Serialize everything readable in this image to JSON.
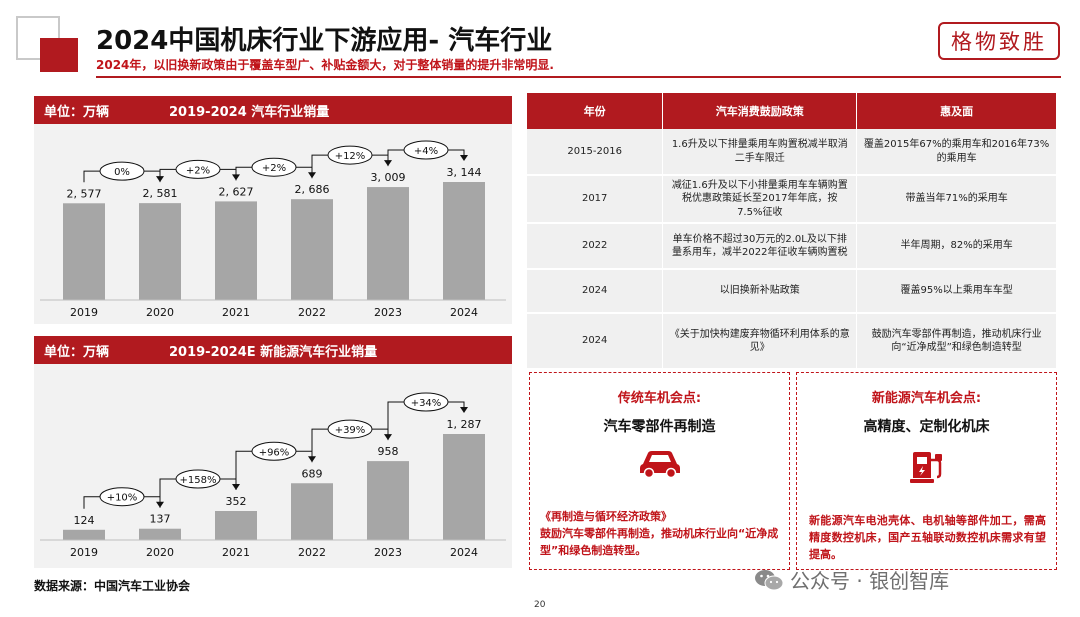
{
  "header": {
    "title": "2024中国机床行业下游应用- 汽车行业",
    "subtitle": "2024年，以旧换新政策由于覆盖车型广、补贴金额大，对于整体销量的提升非常明显.",
    "seal_text": "格物致胜"
  },
  "colors": {
    "brand_red": "#b11a1f",
    "bar_gray": "#a6a6a6",
    "panel_bg": "#f2f2f2"
  },
  "chart1": {
    "unit": "单位：万辆",
    "title": "2019-2024   汽车行业销量"
  },
  "chart2": {
    "unit": "单位：万辆",
    "title": "2019-2024E  新能源汽车行业销量"
  },
  "chart_data": [
    {
      "type": "bar",
      "title": "2019-2024   汽车行业销量",
      "categories": [
        "2019",
        "2020",
        "2021",
        "2022",
        "2023",
        "2024"
      ],
      "values": [
        2577,
        2581,
        2627,
        2686,
        3009,
        3144
      ],
      "value_labels": [
        "2, 577",
        "2, 581",
        "2, 627",
        "2, 686",
        "3, 009",
        "3, 144"
      ],
      "growth_labels": [
        "0%",
        "+2%",
        "+2%",
        "+12%",
        "+4%"
      ],
      "unit": "万辆"
    },
    {
      "type": "bar",
      "title": "2019-2024E  新能源汽车行业销量",
      "categories": [
        "2019",
        "2020",
        "2021",
        "2022",
        "2023",
        "2024"
      ],
      "values": [
        124,
        137,
        352,
        689,
        958,
        1287
      ],
      "value_labels": [
        "124",
        "137",
        "352",
        "689",
        "958",
        "1, 287"
      ],
      "growth_labels": [
        "+10%",
        "+158%",
        "+96%",
        "+39%",
        "+34%"
      ],
      "unit": "万辆"
    }
  ],
  "policy_table": {
    "headers": [
      "年份",
      "汽车消费鼓励政策",
      "惠及面"
    ],
    "rows": [
      {
        "year": "2015-2016",
        "policy": "1.6升及以下排量乘用车购置税减半取消二手车限迁",
        "scope": "覆盖2015年67%的乘用车和2016年73%的乘用车"
      },
      {
        "year": "2017",
        "policy": "减征1.6升及以下小排量乘用车车辆购置税优惠政策延长至2017年年底，按7.5%征收",
        "scope": "带盖当年71%的采用车"
      },
      {
        "year": "2022",
        "policy": "单车价格不超过30万元的2.0L及以下排量系用车，减半2022年征收车辆购置税",
        "scope": "半年周期，82%的采用车"
      },
      {
        "year": "2024",
        "policy": "以旧换新补贴政策",
        "scope": "覆盖95%以上乘用车车型"
      },
      {
        "year": "2024",
        "policy": "《关于加快构建废弃物循环利用体系的意见》",
        "scope": "鼓励汽车零部件再制造，推动机床行业向“近净成型”和绿色制造转型"
      }
    ]
  },
  "opportunities": {
    "traditional": {
      "title": "传统车机会点:",
      "subtitle": "汽车零部件再制造",
      "icon": "car-icon",
      "doc_title": "《再制造与循环经济政策》",
      "text": "鼓励汽车零部件再制造，推动机床行业向“近净成型”和绿色制造转型。"
    },
    "new_energy": {
      "title": "新能源汽车机会点:",
      "subtitle": "高精度、定制化机床",
      "icon": "ev-charger-icon",
      "text": "新能源汽车电池壳体、电机轴等部件加工，需高精度数控机床，国产五轴联动数控机床需求有望提高。"
    }
  },
  "footer": {
    "source": "数据来源：中国汽车工业协会",
    "page_number": "20",
    "watermark": "公众号 · 银创智库"
  }
}
